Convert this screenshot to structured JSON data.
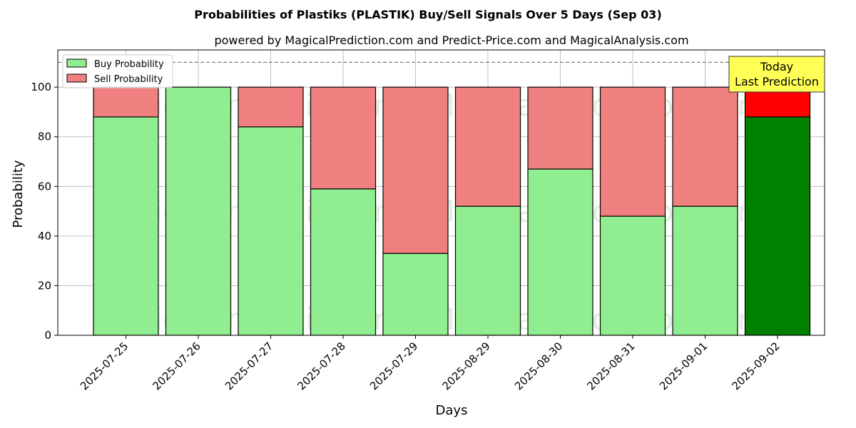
{
  "chart_data": {
    "type": "bar",
    "stacked": true,
    "title": "Probabilities of Plastiks (PLASTIK) Buy/Sell Signals Over 5 Days (Sep 03)",
    "subtitle": "powered by MagicalPrediction.com and Predict-Price.com and MagicalAnalysis.com",
    "xlabel": "Days",
    "ylabel": "Probability",
    "ylim": [
      0,
      115
    ],
    "yticks": [
      0,
      20,
      40,
      60,
      80,
      100
    ],
    "reference_line": 110,
    "grid": true,
    "legend_position": "top-left",
    "categories": [
      "2025-07-25",
      "2025-07-26",
      "2025-07-27",
      "2025-07-28",
      "2025-07-29",
      "2025-08-29",
      "2025-08-30",
      "2025-08-31",
      "2025-09-01",
      "2025-09-02"
    ],
    "series": [
      {
        "name": "Buy Probability",
        "color": "#90ee90",
        "values": [
          88,
          100,
          84,
          59,
          33,
          52,
          67,
          48,
          52,
          88
        ]
      },
      {
        "name": "Sell Probability",
        "color": "#f08080",
        "values": [
          12,
          0,
          16,
          41,
          67,
          48,
          33,
          52,
          48,
          12
        ]
      }
    ],
    "highlight": {
      "index": 9,
      "buy_color": "#008000",
      "sell_color": "#ff0000"
    },
    "annotation": {
      "lines": [
        "Today",
        "Last Prediction"
      ],
      "background": "#ffff55"
    },
    "watermarks": [
      "MagicalAnalysis.com",
      "MagicalPrediction.com"
    ]
  }
}
